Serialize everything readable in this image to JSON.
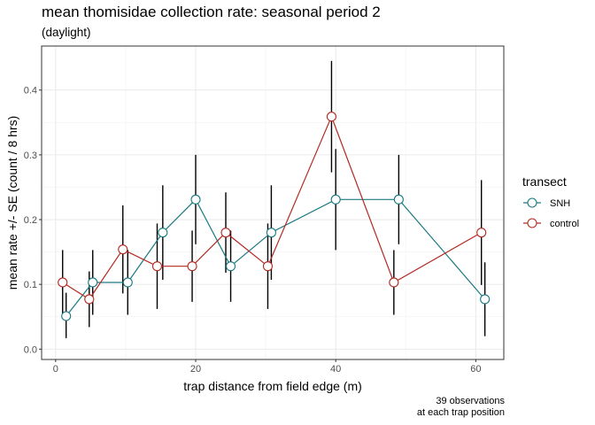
{
  "chart_data": {
    "type": "line",
    "title": "mean thomisidae collection rate: seasonal period 2",
    "subtitle": "(daylight)",
    "xlabel": "trap distance from field edge (m)",
    "ylabel": "mean rate +/- SE (count / 8 hrs)",
    "caption": [
      "39 observations",
      "at each trap position"
    ],
    "xlim": [
      -2,
      64
    ],
    "ylim": [
      -0.016,
      0.468
    ],
    "xticks": [
      0,
      20,
      40,
      60
    ],
    "yticks": [
      0.0,
      0.1,
      0.2,
      0.3,
      0.4
    ],
    "ytick_labels": [
      "0.0",
      "0.1",
      "0.2",
      "0.3",
      "0.4"
    ],
    "grid": true,
    "legend": {
      "title": "transect",
      "position": "right"
    },
    "series": [
      {
        "name": "SNH",
        "color": "#1a7a80",
        "points": [
          {
            "x": 1.5,
            "y": 0.051,
            "lo": 0.017,
            "hi": 0.087
          },
          {
            "x": 5.3,
            "y": 0.103,
            "lo": 0.053,
            "hi": 0.153
          },
          {
            "x": 10.3,
            "y": 0.103,
            "lo": 0.053,
            "hi": 0.153
          },
          {
            "x": 15.3,
            "y": 0.18,
            "lo": 0.107,
            "hi": 0.253
          },
          {
            "x": 20.0,
            "y": 0.231,
            "lo": 0.162,
            "hi": 0.3
          },
          {
            "x": 25.0,
            "y": 0.128,
            "lo": 0.073,
            "hi": 0.183
          },
          {
            "x": 30.8,
            "y": 0.18,
            "lo": 0.107,
            "hi": 0.253
          },
          {
            "x": 40.0,
            "y": 0.231,
            "lo": 0.153,
            "hi": 0.309
          },
          {
            "x": 49.0,
            "y": 0.231,
            "lo": 0.162,
            "hi": 0.3
          },
          {
            "x": 61.3,
            "y": 0.077,
            "lo": 0.02,
            "hi": 0.134
          }
        ]
      },
      {
        "name": "control",
        "color": "#b22a22",
        "points": [
          {
            "x": 1.0,
            "y": 0.103,
            "lo": 0.053,
            "hi": 0.153
          },
          {
            "x": 4.8,
            "y": 0.077,
            "lo": 0.034,
            "hi": 0.12
          },
          {
            "x": 9.6,
            "y": 0.154,
            "lo": 0.086,
            "hi": 0.222
          },
          {
            "x": 14.5,
            "y": 0.128,
            "lo": 0.062,
            "hi": 0.194
          },
          {
            "x": 19.5,
            "y": 0.128,
            "lo": 0.073,
            "hi": 0.183
          },
          {
            "x": 24.3,
            "y": 0.18,
            "lo": 0.118,
            "hi": 0.242
          },
          {
            "x": 30.3,
            "y": 0.128,
            "lo": 0.062,
            "hi": 0.194
          },
          {
            "x": 39.4,
            "y": 0.359,
            "lo": 0.273,
            "hi": 0.445
          },
          {
            "x": 48.3,
            "y": 0.103,
            "lo": 0.053,
            "hi": 0.153
          },
          {
            "x": 60.8,
            "y": 0.18,
            "lo": 0.099,
            "hi": 0.261
          }
        ]
      }
    ]
  }
}
